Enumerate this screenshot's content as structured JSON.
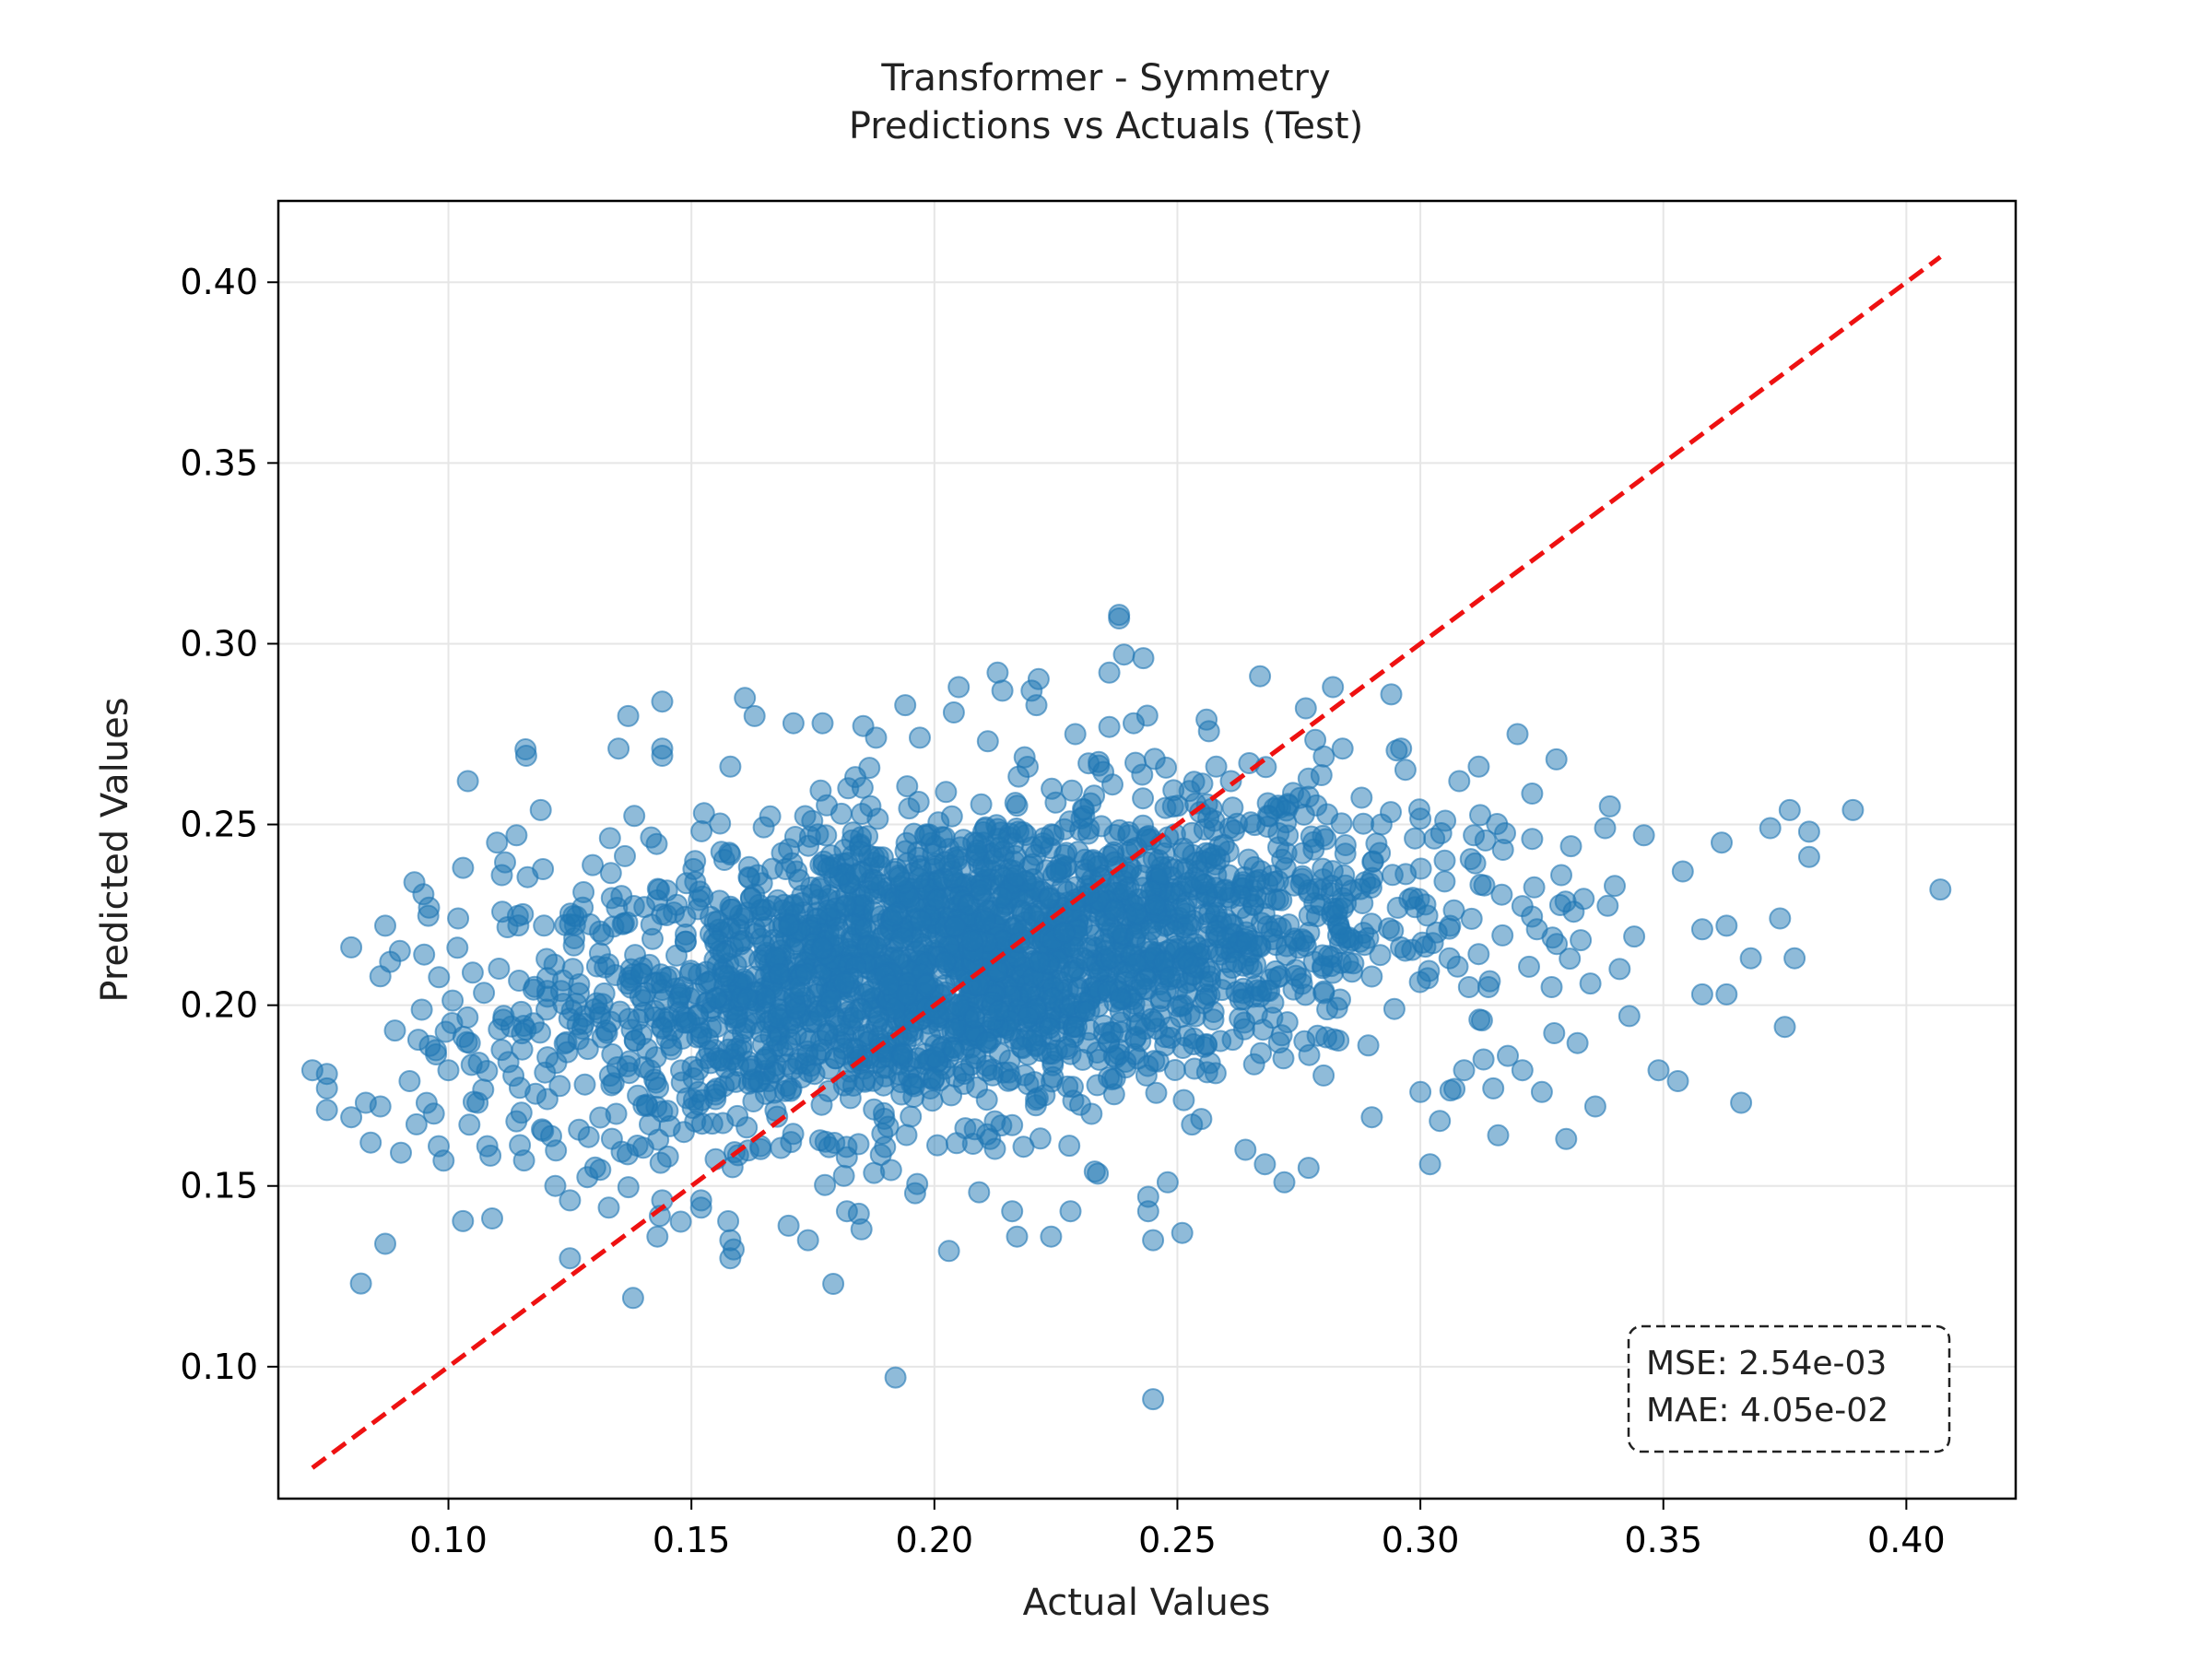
{
  "chart_data": {
    "type": "scatter",
    "title_line1": "Transformer - Symmetry",
    "title_line2": "Predictions vs Actuals (Test)",
    "xlabel": "Actual Values",
    "ylabel": "Predicted Values",
    "xlim": [
      0.065,
      0.4225
    ],
    "ylim": [
      0.0635,
      0.4225
    ],
    "xticks": [
      0.1,
      0.15,
      0.2,
      0.25,
      0.3,
      0.35,
      0.4
    ],
    "yticks": [
      0.1,
      0.15,
      0.2,
      0.25,
      0.3,
      0.35,
      0.4
    ],
    "xtick_labels": [
      "0.10",
      "0.15",
      "0.20",
      "0.25",
      "0.30",
      "0.35",
      "0.40"
    ],
    "ytick_labels": [
      "0.10",
      "0.15",
      "0.20",
      "0.25",
      "0.30",
      "0.35",
      "0.40"
    ],
    "grid": true,
    "point_color": "#1f77b4",
    "point_alpha": 0.5,
    "reference_line": {
      "from": [
        0.072,
        0.072
      ],
      "to": [
        0.407,
        0.407
      ],
      "color": "#ee1111",
      "style": "dashed"
    },
    "metrics": {
      "mse": "MSE: 2.54e-03",
      "mae": "MAE: 4.05e-02"
    },
    "outlier_points": [
      [
        0.072,
        0.182
      ],
      [
        0.075,
        0.181
      ],
      [
        0.075,
        0.177
      ],
      [
        0.075,
        0.171
      ],
      [
        0.08,
        0.169
      ],
      [
        0.08,
        0.216
      ],
      [
        0.082,
        0.123
      ],
      [
        0.083,
        0.173
      ],
      [
        0.084,
        0.162
      ],
      [
        0.086,
        0.172
      ],
      [
        0.086,
        0.208
      ],
      [
        0.087,
        0.134
      ],
      [
        0.087,
        0.222
      ],
      [
        0.088,
        0.212
      ],
      [
        0.089,
        0.193
      ],
      [
        0.09,
        0.215
      ],
      [
        0.092,
        0.179
      ],
      [
        0.093,
        0.234
      ],
      [
        0.095,
        0.214
      ],
      [
        0.096,
        0.227
      ],
      [
        0.097,
        0.17
      ],
      [
        0.098,
        0.161
      ],
      [
        0.099,
        0.157
      ],
      [
        0.1,
        0.182
      ],
      [
        0.102,
        0.224
      ],
      [
        0.103,
        0.238
      ],
      [
        0.104,
        0.262
      ],
      [
        0.105,
        0.209
      ],
      [
        0.106,
        0.173
      ],
      [
        0.108,
        0.161
      ],
      [
        0.109,
        0.141
      ],
      [
        0.11,
        0.245
      ],
      [
        0.111,
        0.236
      ],
      [
        0.114,
        0.247
      ],
      [
        0.116,
        0.269
      ],
      [
        0.119,
        0.254
      ],
      [
        0.122,
        0.15
      ],
      [
        0.125,
        0.13
      ],
      [
        0.125,
        0.146
      ],
      [
        0.133,
        0.144
      ],
      [
        0.135,
        0.271
      ],
      [
        0.137,
        0.28
      ],
      [
        0.138,
        0.119
      ],
      [
        0.143,
        0.136
      ],
      [
        0.144,
        0.146
      ],
      [
        0.144,
        0.284
      ],
      [
        0.144,
        0.271
      ],
      [
        0.144,
        0.269
      ],
      [
        0.152,
        0.144
      ],
      [
        0.152,
        0.146
      ],
      [
        0.158,
        0.135
      ],
      [
        0.158,
        0.13
      ],
      [
        0.158,
        0.266
      ],
      [
        0.161,
        0.285
      ],
      [
        0.163,
        0.28
      ],
      [
        0.17,
        0.139
      ],
      [
        0.171,
        0.278
      ],
      [
        0.174,
        0.135
      ],
      [
        0.177,
        0.278
      ],
      [
        0.182,
        0.143
      ],
      [
        0.185,
        0.138
      ],
      [
        0.188,
        0.274
      ],
      [
        0.192,
        0.097
      ],
      [
        0.194,
        0.283
      ],
      [
        0.197,
        0.274
      ],
      [
        0.203,
        0.132
      ],
      [
        0.204,
        0.281
      ],
      [
        0.205,
        0.288
      ],
      [
        0.211,
        0.273
      ],
      [
        0.213,
        0.292
      ],
      [
        0.214,
        0.287
      ],
      [
        0.216,
        0.143
      ],
      [
        0.217,
        0.136
      ],
      [
        0.22,
        0.287
      ],
      [
        0.221,
        0.283
      ],
      [
        0.224,
        0.136
      ],
      [
        0.228,
        0.143
      ],
      [
        0.229,
        0.275
      ],
      [
        0.233,
        0.154
      ],
      [
        0.236,
        0.292
      ],
      [
        0.236,
        0.277
      ],
      [
        0.238,
        0.307
      ],
      [
        0.238,
        0.308
      ],
      [
        0.239,
        0.297
      ],
      [
        0.241,
        0.278
      ],
      [
        0.243,
        0.296
      ],
      [
        0.244,
        0.147
      ],
      [
        0.244,
        0.143
      ],
      [
        0.245,
        0.091
      ],
      [
        0.245,
        0.135
      ],
      [
        0.248,
        0.151
      ],
      [
        0.251,
        0.137
      ],
      [
        0.253,
        0.167
      ],
      [
        0.256,
        0.279
      ],
      [
        0.258,
        0.266
      ],
      [
        0.261,
        0.262
      ],
      [
        0.264,
        0.16
      ],
      [
        0.267,
        0.291
      ],
      [
        0.268,
        0.156
      ],
      [
        0.272,
        0.151
      ],
      [
        0.277,
        0.155
      ],
      [
        0.282,
        0.288
      ],
      [
        0.284,
        0.271
      ],
      [
        0.29,
        0.169
      ],
      [
        0.292,
        0.25
      ],
      [
        0.294,
        0.286
      ],
      [
        0.296,
        0.216
      ],
      [
        0.3,
        0.176
      ],
      [
        0.302,
        0.156
      ],
      [
        0.304,
        0.168
      ],
      [
        0.305,
        0.24
      ],
      [
        0.306,
        0.213
      ],
      [
        0.308,
        0.262
      ],
      [
        0.309,
        0.182
      ],
      [
        0.31,
        0.205
      ],
      [
        0.311,
        0.247
      ],
      [
        0.312,
        0.266
      ],
      [
        0.313,
        0.185
      ],
      [
        0.314,
        0.205
      ],
      [
        0.315,
        0.177
      ],
      [
        0.316,
        0.164
      ],
      [
        0.317,
        0.243
      ],
      [
        0.318,
        0.186
      ],
      [
        0.32,
        0.275
      ],
      [
        0.321,
        0.182
      ],
      [
        0.323,
        0.246
      ],
      [
        0.324,
        0.221
      ],
      [
        0.325,
        0.176
      ],
      [
        0.327,
        0.205
      ],
      [
        0.328,
        0.268
      ],
      [
        0.329,
        0.236
      ],
      [
        0.33,
        0.163
      ],
      [
        0.331,
        0.244
      ],
      [
        0.333,
        0.218
      ],
      [
        0.335,
        0.206
      ],
      [
        0.336,
        0.172
      ],
      [
        0.338,
        0.249
      ],
      [
        0.339,
        0.255
      ],
      [
        0.34,
        0.233
      ],
      [
        0.341,
        0.21
      ],
      [
        0.343,
        0.197
      ],
      [
        0.344,
        0.219
      ],
      [
        0.346,
        0.247
      ],
      [
        0.349,
        0.182
      ],
      [
        0.353,
        0.179
      ],
      [
        0.354,
        0.237
      ],
      [
        0.358,
        0.203
      ],
      [
        0.358,
        0.221
      ],
      [
        0.362,
        0.245
      ],
      [
        0.363,
        0.222
      ],
      [
        0.363,
        0.203
      ],
      [
        0.366,
        0.173
      ],
      [
        0.368,
        0.213
      ],
      [
        0.372,
        0.249
      ],
      [
        0.374,
        0.224
      ],
      [
        0.375,
        0.194
      ],
      [
        0.376,
        0.254
      ],
      [
        0.377,
        0.213
      ],
      [
        0.38,
        0.248
      ],
      [
        0.38,
        0.241
      ],
      [
        0.389,
        0.254
      ],
      [
        0.407,
        0.232
      ]
    ]
  }
}
